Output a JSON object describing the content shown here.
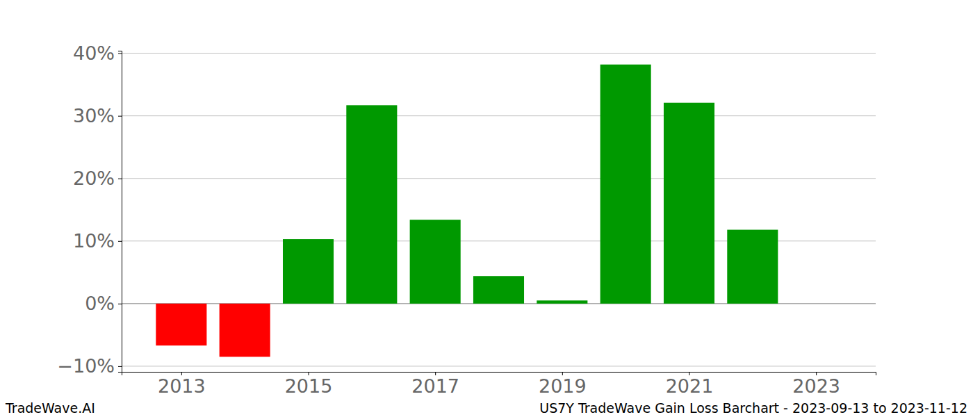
{
  "chart_data": {
    "type": "bar",
    "title": "US7Y TradeWave Gain Loss Barchart - 2023-09-13 to 2023-11-12",
    "annotations": [
      "TradeWave.AI"
    ],
    "x": [
      2013,
      2014,
      2015,
      2016,
      2017,
      2018,
      2019,
      2020,
      2021,
      2022
    ],
    "values": [
      -6.7,
      -8.5,
      10.3,
      31.7,
      13.4,
      4.4,
      0.5,
      38.2,
      32.1,
      11.8
    ],
    "colors": [
      "#ff0000",
      "#ff0000",
      "#009900",
      "#009900",
      "#009900",
      "#009900",
      "#009900",
      "#009900",
      "#009900",
      "#009900"
    ],
    "xlim": [
      2012.06,
      2023.94
    ],
    "xticks": [
      2013,
      2015,
      2017,
      2019,
      2021,
      2023
    ],
    "ylim": [
      -10.9,
      40.4
    ],
    "yticks": [
      {
        "value": -10,
        "label": "−10%"
      },
      {
        "value": 0,
        "label": "0%"
      },
      {
        "value": 10,
        "label": "10%"
      },
      {
        "value": 20,
        "label": "20%"
      },
      {
        "value": 30,
        "label": "30%"
      },
      {
        "value": 40,
        "label": "40%"
      }
    ],
    "grid": true
  }
}
